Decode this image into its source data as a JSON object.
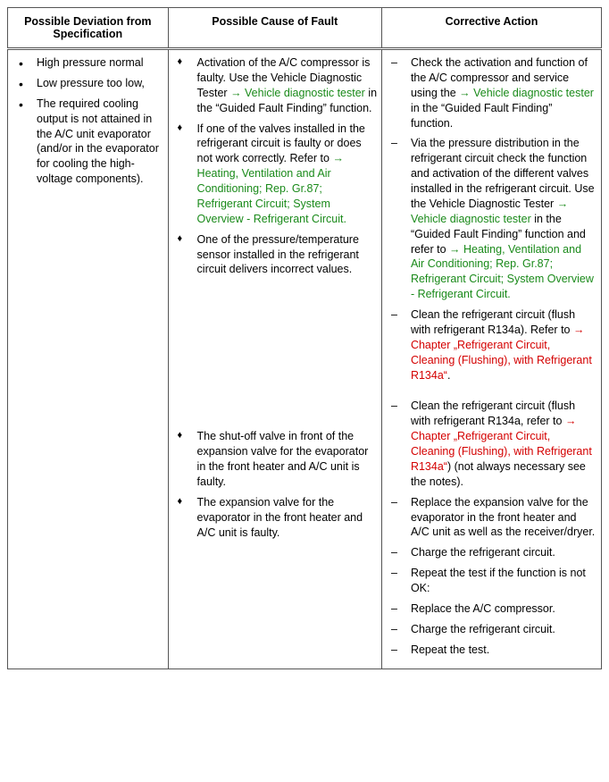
{
  "colors": {
    "link_green": "#1a8a1a",
    "link_red": "#d40000",
    "text": "#000000",
    "border": "#555555",
    "background": "#ffffff"
  },
  "table": {
    "col_widths_pct": [
      27,
      36,
      37
    ],
    "headers": [
      "Possible Deviation from Specification",
      "Possible Cause of Fault",
      "Corrective Action"
    ],
    "row": {
      "deviation": [
        "High pressure normal",
        "Low pressure too low,",
        "The required cooling output is not attained in the A/C unit evaporator (and/or in the evaporator for cooling the high-voltage components)."
      ],
      "cause_block1": [
        {
          "pre": "Activation of the A/C compressor is faulty. Use the Vehicle Diagnostic Tester ",
          "link": "→ Vehicle diagnostic tester",
          "link_style": "green",
          "post": " in the “Guided Fault Finding” function."
        },
        {
          "pre": "If one of the valves installed in the refrigerant circuit is faulty or does not work correctly. Refer to ",
          "link": "→ Heating, Ventilation and Air Conditioning; Rep. Gr.87; Refrigerant Circuit; System Overview - Refrigerant Circuit.",
          "link_style": "green",
          "post": ""
        },
        {
          "pre": "One of the pressure/temperature sensor installed in the refrigerant circuit delivers incorrect values.",
          "link": "",
          "link_style": "",
          "post": ""
        }
      ],
      "cause_block2": [
        {
          "pre": "The shut-off valve in front of the expansion valve for the evaporator in the front heater and A/C unit is faulty.",
          "link": "",
          "link_style": "",
          "post": ""
        },
        {
          "pre": "The expansion valve for the evaporator in the front heater and A/C unit is faulty.",
          "link": "",
          "link_style": "",
          "post": ""
        }
      ],
      "action_block1": [
        {
          "parts": [
            {
              "t": "Check the activation and function of the A/C compressor and service using the "
            },
            {
              "t": "→ Vehicle diagnostic tester",
              "style": "green"
            },
            {
              "t": " in the “Guided Fault Finding” function."
            }
          ]
        },
        {
          "parts": [
            {
              "t": "Via the pressure distribution in the refrigerant circuit check the function and activation of the different valves installed in the refrigerant circuit. Use the Vehicle Diagnostic Tester "
            },
            {
              "t": "→ Vehicle diagnostic tester",
              "style": "green"
            },
            {
              "t": " in the “Guided Fault Finding” function and refer to "
            },
            {
              "t": "→ Heating, Ventilation and Air Conditioning; Rep. Gr.87; Refrigerant Circuit; System Overview - Refrigerant Circuit.",
              "style": "green"
            }
          ]
        },
        {
          "parts": [
            {
              "t": "Clean the refrigerant circuit (flush with refrigerant R134a). Refer to "
            },
            {
              "t": "→ Chapter „Refrigerant Circuit, Cleaning (Flushing), with Refrigerant R134a“",
              "style": "red"
            },
            {
              "t": "."
            }
          ]
        }
      ],
      "action_block2": [
        {
          "parts": [
            {
              "t": "Clean the refrigerant circuit (flush with refrigerant R134a, refer to "
            },
            {
              "t": "→ Chapter „Refrigerant Circuit, Cleaning (Flushing), with Refrigerant R134a“",
              "style": "red"
            },
            {
              "t": ") (not always necessary see the notes)."
            }
          ]
        },
        {
          "parts": [
            {
              "t": "Replace the expansion valve for the evaporator in the front heater and A/C unit as well as the receiver/dryer."
            }
          ]
        },
        {
          "parts": [
            {
              "t": "Charge the refrigerant circuit."
            }
          ]
        },
        {
          "parts": [
            {
              "t": "Repeat the test if the function is not OK:"
            }
          ]
        },
        {
          "parts": [
            {
              "t": "Replace the A/C compressor."
            }
          ]
        },
        {
          "parts": [
            {
              "t": "Charge the refrigerant circuit."
            }
          ]
        },
        {
          "parts": [
            {
              "t": "Repeat the test."
            }
          ]
        }
      ]
    }
  }
}
